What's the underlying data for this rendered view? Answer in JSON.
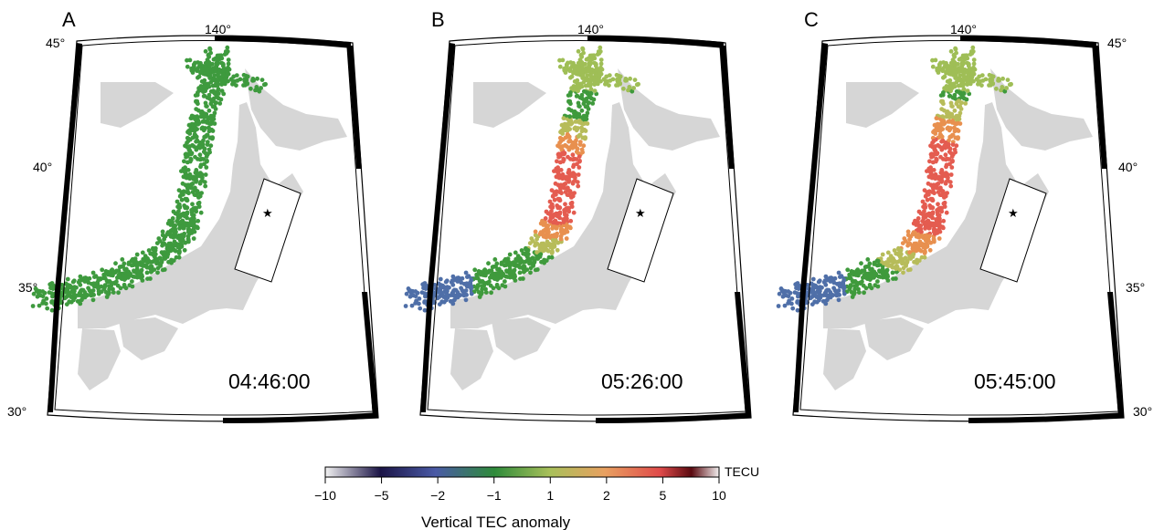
{
  "panels": [
    {
      "letter": "A",
      "time": "04:46:00",
      "anomaly": 0
    },
    {
      "letter": "B",
      "time": "05:26:00",
      "anomaly": 1
    },
    {
      "letter": "C",
      "time": "05:45:00",
      "anomaly": 2
    }
  ],
  "axis_labels": {
    "lon_top": "140°",
    "lat_45": "45°",
    "lat_40": "40°",
    "lat_35": "35°",
    "lat_30": "30°"
  },
  "colorbar": {
    "ticks": [
      "−10",
      "−5",
      "−2",
      "−1",
      "1",
      "2",
      "5",
      "10"
    ],
    "unit": "TECU",
    "title": "Vertical TEC anomaly",
    "colors": [
      "#f2f2f2",
      "#1b1446",
      "#4a5aa6",
      "#2e8b3a",
      "#a8c05a",
      "#e8a060",
      "#e04a4a",
      "#5a0a10",
      "#f2eeee"
    ]
  },
  "colors": {
    "land": "#d6d6d6",
    "frame": "#000000",
    "station_base": "#3e9a3e"
  }
}
